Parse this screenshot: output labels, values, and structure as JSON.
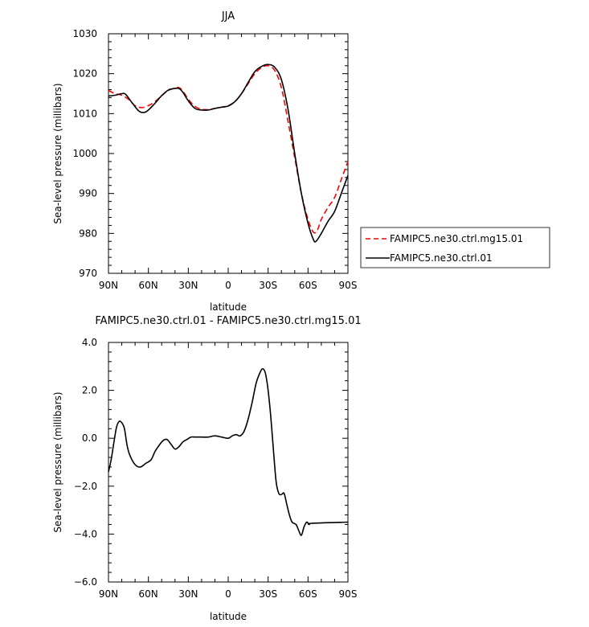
{
  "chart_data": [
    {
      "type": "line",
      "title": "JJA",
      "xlabel": "latitude",
      "ylabel": "Sea-level pressure (millibars)",
      "xlim": [
        90,
        -90
      ],
      "ylim": [
        970,
        1030
      ],
      "x_ticks": [
        90,
        60,
        30,
        0,
        -30,
        -60,
        -90
      ],
      "x_tick_labels": [
        "90N",
        "60N",
        "30N",
        "0",
        "30S",
        "60S",
        "90S"
      ],
      "y_ticks": [
        970,
        980,
        990,
        1000,
        1010,
        1020,
        1030
      ],
      "y_tick_labels": [
        "970",
        "980",
        "990",
        "1000",
        "1010",
        "1020",
        "1030"
      ],
      "grid": false,
      "legend_position": "right",
      "series": [
        {
          "name": "FAMIPC5.ne30.ctrl.mg15.01",
          "color": "#ff0000",
          "dash": "dashed",
          "points": [
            [
              90,
              1015.8
            ],
            [
              85,
              1015.0
            ],
            [
              80,
              1014.6
            ],
            [
              75,
              1013.6
            ],
            [
              70,
              1012.0
            ],
            [
              65,
              1011.5
            ],
            [
              60,
              1012.0
            ],
            [
              55,
              1013.0
            ],
            [
              50,
              1014.5
            ],
            [
              45,
              1015.8
            ],
            [
              40,
              1016.4
            ],
            [
              37,
              1016.5
            ],
            [
              34,
              1015.6
            ],
            [
              30,
              1013.6
            ],
            [
              25,
              1011.8
            ],
            [
              20,
              1011.1
            ],
            [
              15,
              1011.0
            ],
            [
              10,
              1011.3
            ],
            [
              5,
              1011.6
            ],
            [
              0,
              1012.0
            ],
            [
              -5,
              1013.0
            ],
            [
              -10,
              1015.0
            ],
            [
              -15,
              1017.5
            ],
            [
              -20,
              1020.0
            ],
            [
              -25,
              1021.5
            ],
            [
              -30,
              1022.0
            ],
            [
              -35,
              1020.8
            ],
            [
              -40,
              1016.5
            ],
            [
              -45,
              1008.0
            ],
            [
              -50,
              999.0
            ],
            [
              -55,
              990.0
            ],
            [
              -60,
              983.5
            ],
            [
              -64,
              980.3
            ],
            [
              -67,
              980.8
            ],
            [
              -70,
              983.5
            ],
            [
              -75,
              986.5
            ],
            [
              -80,
              989.0
            ],
            [
              -85,
              993.5
            ],
            [
              -90,
              998.0
            ]
          ]
        },
        {
          "name": "FAMIPC5.ne30.ctrl.01",
          "color": "#000000",
          "dash": "solid",
          "points": [
            [
              90,
              1014.4
            ],
            [
              85,
              1014.6
            ],
            [
              80,
              1015.0
            ],
            [
              77,
              1014.8
            ],
            [
              72,
              1012.6
            ],
            [
              67,
              1010.6
            ],
            [
              63,
              1010.3
            ],
            [
              60,
              1010.9
            ],
            [
              55,
              1012.6
            ],
            [
              50,
              1014.5
            ],
            [
              45,
              1015.9
            ],
            [
              40,
              1016.3
            ],
            [
              37,
              1016.3
            ],
            [
              34,
              1015.3
            ],
            [
              30,
              1013.2
            ],
            [
              25,
              1011.3
            ],
            [
              20,
              1010.9
            ],
            [
              15,
              1010.9
            ],
            [
              10,
              1011.3
            ],
            [
              5,
              1011.6
            ],
            [
              0,
              1011.9
            ],
            [
              -5,
              1013.0
            ],
            [
              -10,
              1015.0
            ],
            [
              -15,
              1017.8
            ],
            [
              -20,
              1020.5
            ],
            [
              -25,
              1021.8
            ],
            [
              -30,
              1022.3
            ],
            [
              -35,
              1021.6
            ],
            [
              -40,
              1018.5
            ],
            [
              -45,
              1011.0
            ],
            [
              -50,
              1000.0
            ],
            [
              -55,
              990.0
            ],
            [
              -60,
              982.5
            ],
            [
              -64,
              978.5
            ],
            [
              -66,
              978.0
            ],
            [
              -70,
              980.0
            ],
            [
              -75,
              983.0
            ],
            [
              -80,
              985.5
            ],
            [
              -85,
              990.0
            ],
            [
              -90,
              994.5
            ]
          ]
        }
      ]
    },
    {
      "type": "line",
      "title": "FAMIPC5.ne30.ctrl.01 - FAMIPC5.ne30.ctrl.mg15.01",
      "xlabel": "latitude",
      "ylabel": "Sea-level pressure (millibars)",
      "xlim": [
        90,
        -90
      ],
      "ylim": [
        -6.0,
        4.0
      ],
      "x_ticks": [
        90,
        60,
        30,
        0,
        -30,
        -60,
        -90
      ],
      "x_tick_labels": [
        "90N",
        "60N",
        "30N",
        "0",
        "30S",
        "60S",
        "90S"
      ],
      "y_ticks": [
        -6.0,
        -4.0,
        -2.0,
        0.0,
        2.0,
        4.0
      ],
      "y_tick_labels": [
        "−6.0",
        "−4.0",
        "−2.0",
        "0.0",
        "2.0",
        "4.0"
      ],
      "grid": false,
      "series": [
        {
          "color": "#000000",
          "dash": "solid",
          "points": [
            [
              90,
              -1.4
            ],
            [
              88,
              -0.9
            ],
            [
              86,
              -0.2
            ],
            [
              84,
              0.45
            ],
            [
              82,
              0.7
            ],
            [
              80,
              0.65
            ],
            [
              78,
              0.4
            ],
            [
              76,
              -0.3
            ],
            [
              74,
              -0.7
            ],
            [
              70,
              -1.1
            ],
            [
              66,
              -1.2
            ],
            [
              62,
              -1.05
            ],
            [
              58,
              -0.9
            ],
            [
              55,
              -0.55
            ],
            [
              52,
              -0.3
            ],
            [
              49,
              -0.1
            ],
            [
              46,
              -0.05
            ],
            [
              43,
              -0.25
            ],
            [
              40,
              -0.45
            ],
            [
              37,
              -0.35
            ],
            [
              34,
              -0.15
            ],
            [
              31,
              -0.05
            ],
            [
              28,
              0.05
            ],
            [
              25,
              0.05
            ],
            [
              20,
              0.05
            ],
            [
              15,
              0.05
            ],
            [
              10,
              0.1
            ],
            [
              5,
              0.05
            ],
            [
              0,
              0.0
            ],
            [
              -3,
              0.1
            ],
            [
              -6,
              0.15
            ],
            [
              -9,
              0.1
            ],
            [
              -12,
              0.3
            ],
            [
              -15,
              0.8
            ],
            [
              -18,
              1.5
            ],
            [
              -21,
              2.3
            ],
            [
              -24,
              2.75
            ],
            [
              -26,
              2.9
            ],
            [
              -28,
              2.7
            ],
            [
              -30,
              2.0
            ],
            [
              -32,
              0.9
            ],
            [
              -34,
              -0.5
            ],
            [
              -36,
              -1.8
            ],
            [
              -38,
              -2.3
            ],
            [
              -40,
              -2.35
            ],
            [
              -42,
              -2.3
            ],
            [
              -44,
              -2.75
            ],
            [
              -46,
              -3.2
            ],
            [
              -48,
              -3.5
            ],
            [
              -51,
              -3.6
            ],
            [
              -53,
              -3.85
            ],
            [
              -55,
              -4.05
            ],
            [
              -57,
              -3.7
            ],
            [
              -59,
              -3.5
            ],
            [
              -61,
              -3.6
            ],
            [
              -62.5,
              -3.55
            ],
            [
              -90,
              -3.5
            ]
          ]
        }
      ]
    }
  ]
}
